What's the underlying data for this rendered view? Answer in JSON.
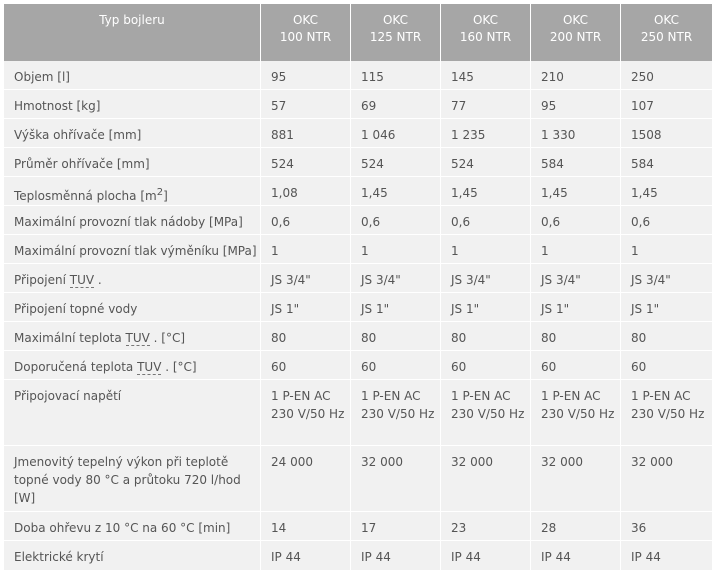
{
  "table": {
    "header_label": "Typ bojleru",
    "models": [
      {
        "line1": "OKC",
        "line2": "100 NTR"
      },
      {
        "line1": "OKC",
        "line2": "125 NTR"
      },
      {
        "line1": "OKC",
        "line2": "160 NTR"
      },
      {
        "line1": "OKC",
        "line2": "200 NTR"
      },
      {
        "line1": "OKC",
        "line2": "250 NTR"
      }
    ],
    "rows": [
      {
        "label_pre": "Objem [l]",
        "values": [
          "95",
          "115",
          "145",
          "210",
          "250"
        ]
      },
      {
        "label_pre": "Hmotnost [kg]",
        "values": [
          "57",
          "69",
          "77",
          "95",
          "107"
        ]
      },
      {
        "label_pre": "Výška ohřívače [mm]",
        "values": [
          "881",
          "1 046",
          "1 235",
          "1 330",
          "1508"
        ]
      },
      {
        "label_pre": "Průměr ohřívače [mm]",
        "values": [
          "524",
          "524",
          "524",
          "584",
          "584"
        ]
      },
      {
        "label_pre": "Teplosměnná plocha [m",
        "label_sup": "2",
        "label_post": "]",
        "values": [
          "1,08",
          "1,45",
          "1,45",
          "1,45",
          "1,45"
        ]
      },
      {
        "label_pre": "Maximální provozní tlak nádoby [MPa]",
        "values": [
          "0,6",
          "0,6",
          "0,6",
          "0,6",
          "0,6"
        ]
      },
      {
        "label_pre": "Maximální provozní tlak výměníku [MPa]",
        "values": [
          "1",
          "1",
          "1",
          "1",
          "1"
        ]
      },
      {
        "label_pre": "Připojení ",
        "label_abbr": "TUV",
        "label_post": " .",
        "values": [
          "JS 3/4\"",
          "JS 3/4\"",
          "JS 3/4\"",
          "JS 3/4\"",
          "JS 3/4\""
        ]
      },
      {
        "label_pre": "Připojení topné vody",
        "values": [
          "JS 1\"",
          "JS 1\"",
          "JS 1\"",
          "JS 1\"",
          "JS 1\""
        ]
      },
      {
        "label_pre": "Maximální teplota ",
        "label_abbr": "TUV",
        "label_post": " . [°C]",
        "values": [
          "80",
          "80",
          "80",
          "80",
          "80"
        ]
      },
      {
        "label_pre": "Doporučená teplota ",
        "label_abbr": "TUV",
        "label_post": " . [°C]",
        "values": [
          "60",
          "60",
          "60",
          "60",
          "60"
        ]
      },
      {
        "label_pre": "Připojovací napětí",
        "values": [
          "1 P-EN AC 230 V/50 Hz",
          "1 P-EN AC 230 V/50 Hz",
          "1 P-EN AC 230 V/50 Hz",
          "1 P-EN AC 230 V/50 Hz",
          "1 P-EN AC 230 V/50 Hz"
        ]
      },
      {
        "label_pre": "Jmenovitý tepelný výkon při teplotě topné vody 80 °C a průtoku 720 l/hod [W]",
        "values": [
          "24 000",
          "32 000",
          "32 000",
          "32 000",
          "32 000"
        ]
      },
      {
        "label_pre": "Doba ohřevu z 10 °C na 60 °C [min]",
        "values": [
          "14",
          "17",
          "23",
          "28",
          "36"
        ]
      },
      {
        "label_pre": "Elektrické krytí",
        "values": [
          "IP 44",
          "IP 44",
          "IP 44",
          "IP 44",
          "IP 44"
        ]
      }
    ]
  }
}
